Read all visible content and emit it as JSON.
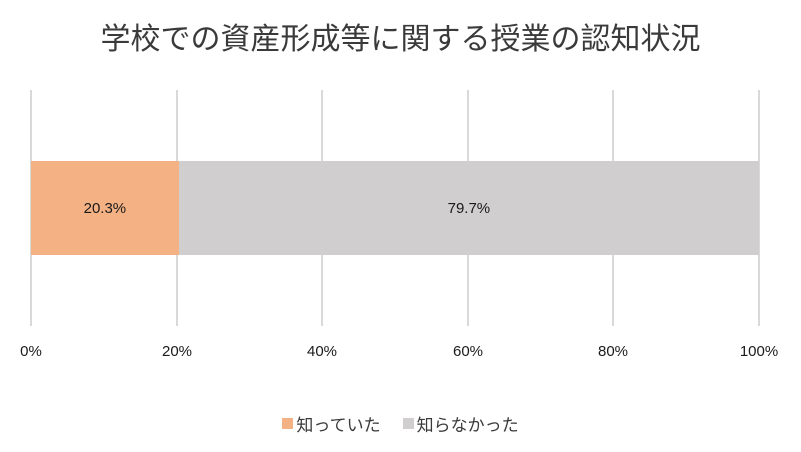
{
  "chart_data": {
    "type": "bar",
    "orientation": "horizontal",
    "stacked": "percent",
    "title": "学校での資産形成等に関する授業の認知状況",
    "categories": [
      ""
    ],
    "series": [
      {
        "name": "知っていた",
        "values": [
          20.3
        ],
        "color": "#F4B183",
        "label": "20.3%"
      },
      {
        "name": "知らなかった",
        "values": [
          79.7
        ],
        "color": "#D0CECE",
        "label": "79.7%"
      }
    ],
    "xlabel": "",
    "ylabel": "",
    "xlim": [
      0,
      100
    ],
    "x_ticks": [
      "0%",
      "20%",
      "40%",
      "60%",
      "80%",
      "100%"
    ],
    "grid": true,
    "legend_position": "bottom"
  }
}
